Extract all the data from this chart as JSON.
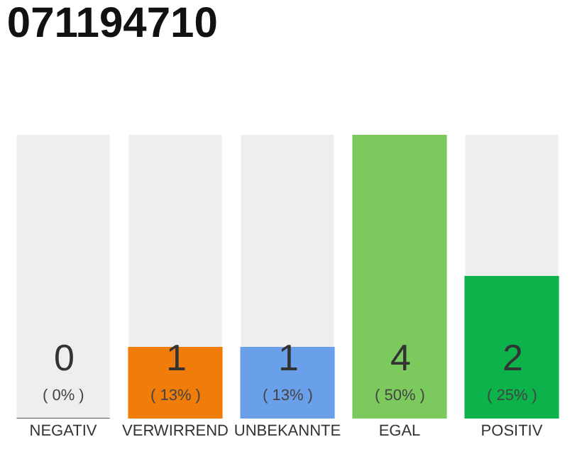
{
  "chart_data": {
    "type": "bar",
    "title": "071194710",
    "categories": [
      "NEGATIV",
      "VERWIRREND",
      "UNBEKANNTE",
      "EGAL",
      "POSITIV"
    ],
    "values": [
      0,
      1,
      1,
      4,
      2
    ],
    "colors": [
      "#555555",
      "#f07d0a",
      "#6a9fea",
      "#7cc95e",
      "#0bb34a"
    ],
    "value_labels": [
      "0\n( 0% )",
      "1\n( 13% )",
      "1\n( 13% )",
      "4\n( 50% )",
      "2\n( 25% )"
    ],
    "ylim": [
      0,
      4
    ],
    "tick_labels": "x",
    "grid": false
  }
}
